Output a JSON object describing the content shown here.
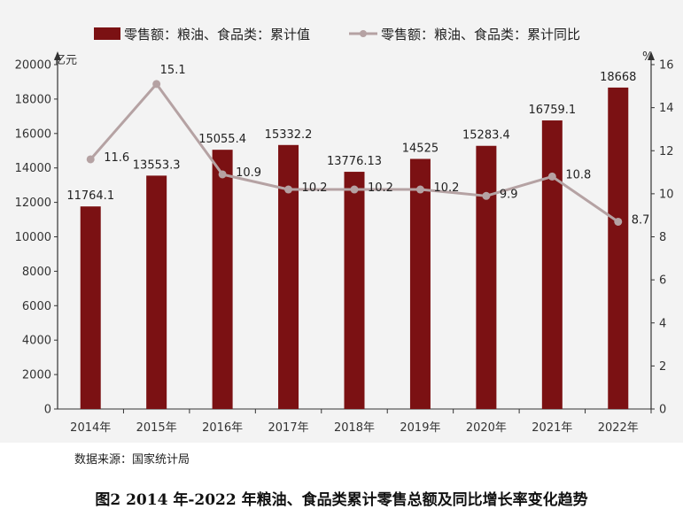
{
  "chart_data": {
    "type": "bar",
    "categories": [
      "2014年",
      "2015年",
      "2016年",
      "2017年",
      "2018年",
      "2019年",
      "2020年",
      "2021年",
      "2022年"
    ],
    "series": [
      {
        "name": "零售额：粮油、食品类：累计值",
        "kind": "bar",
        "axis": "left",
        "color": "#7b1113",
        "values": [
          11764.1,
          13553.3,
          15055.4,
          15332.2,
          13776.13,
          14525,
          15283.4,
          16759.1,
          18668
        ],
        "labels": [
          "11764.1",
          "13553.3",
          "15055.4",
          "15332.2",
          "13776.13",
          "14525",
          "15283.4",
          "16759.1",
          "18668"
        ]
      },
      {
        "name": "零售额：粮油、食品类：累计同比",
        "kind": "line",
        "axis": "right",
        "color": "#b5a2a3",
        "values": [
          11.6,
          15.1,
          10.9,
          10.2,
          10.2,
          10.2,
          9.9,
          10.8,
          8.7
        ],
        "labels": [
          "11.6",
          "15.1",
          "10.9",
          "10.2",
          "10.2",
          "10.2",
          "9.9",
          "10.8",
          "8.7"
        ]
      }
    ],
    "y_left": {
      "unit": "亿元",
      "range": [
        0,
        20000
      ],
      "ticks": [
        0,
        2000,
        4000,
        6000,
        8000,
        10000,
        12000,
        14000,
        16000,
        18000,
        20000
      ]
    },
    "y_right": {
      "unit": "%",
      "range": [
        0,
        16
      ],
      "ticks": [
        0,
        2,
        4,
        6,
        8,
        10,
        12,
        14,
        16
      ]
    },
    "legend_position": "top",
    "grid": false
  },
  "source": "数据来源：国家统计局",
  "caption": "图2 2014 年-2022 年粮油、食品类累计零售总额及同比增长率变化趋势"
}
